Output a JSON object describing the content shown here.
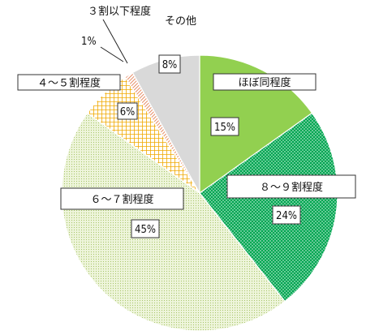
{
  "chart_data": {
    "type": "pie",
    "slices": [
      {
        "label": "ほぼ同程度",
        "value": 15,
        "value_label": "15%",
        "color": "#92d050",
        "pattern": "solid"
      },
      {
        "label": "８～９割程度",
        "value": 24,
        "value_label": "24%",
        "color": "#00a651",
        "pattern": "dots"
      },
      {
        "label": "６～７割程度",
        "value": 45,
        "value_label": "45%",
        "color": "#e6f0cf",
        "pattern": "fine-dots"
      },
      {
        "label": "４～５割程度",
        "value": 6,
        "value_label": "6%",
        "color": "#ffc000",
        "pattern": "grid"
      },
      {
        "label": "３割以下程度",
        "value": 1,
        "value_label": "1%",
        "color": "#f4b183",
        "pattern": "diagonal"
      },
      {
        "label": "その他",
        "value": 8,
        "value_label": "8%",
        "color": "#d9d9d9",
        "pattern": "solid"
      }
    ]
  }
}
